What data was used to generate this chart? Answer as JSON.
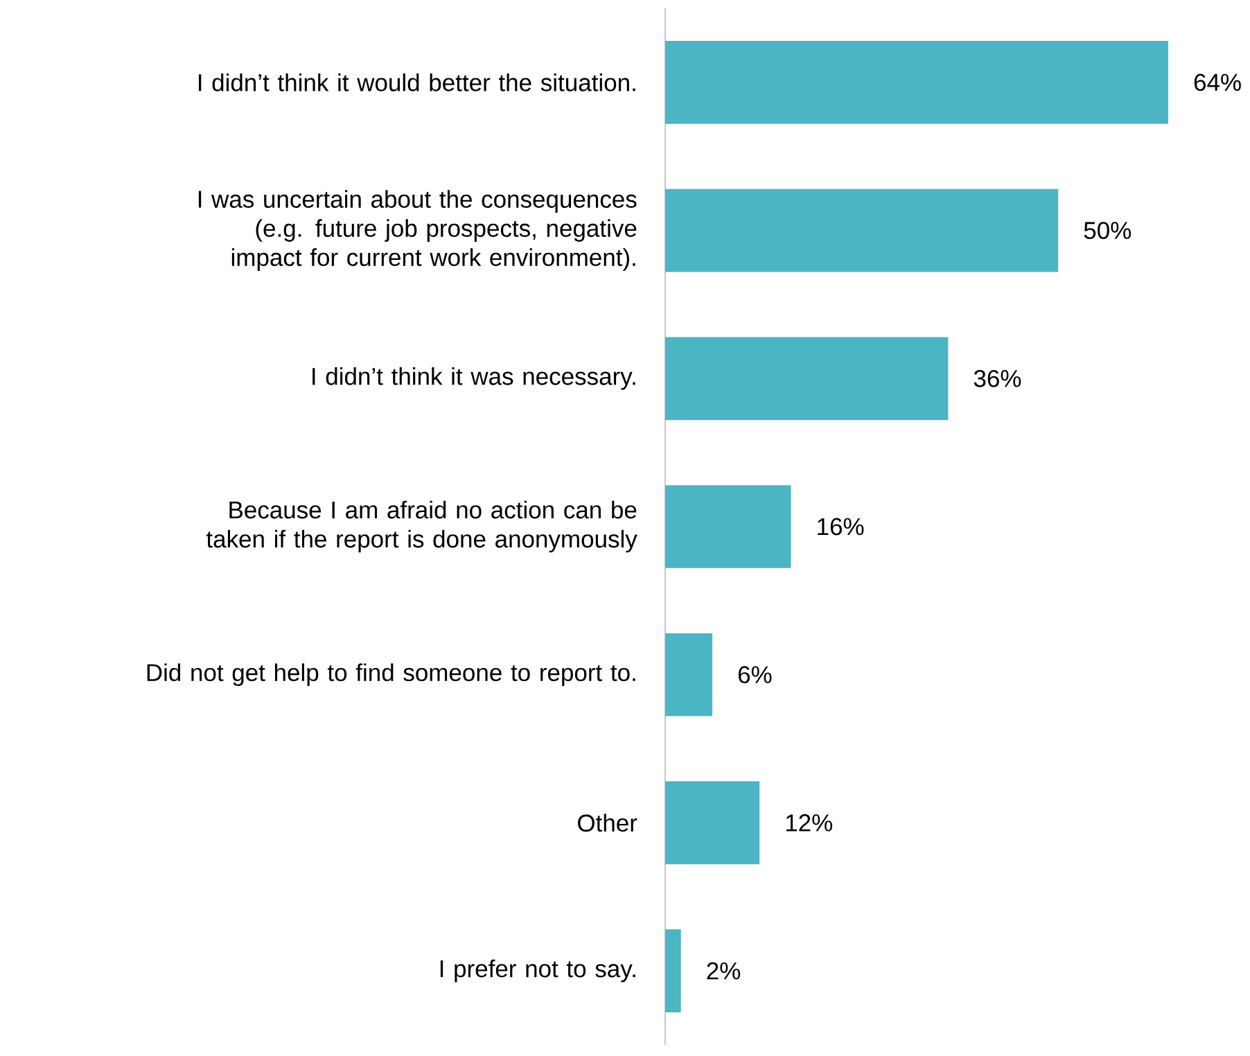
{
  "chart_data": {
    "type": "bar",
    "orientation": "horizontal",
    "categories": [
      "I didn’t think it would better the situation.",
      "I was uncertain about the consequences (e.g. future job prospects, negative impact for current work environment).",
      "I didn’t think it was necessary.",
      "Because I am afraid no action can be taken if the report is done anonymously",
      "Did not get help to find someone to report to.",
      "Other",
      "I prefer not to say."
    ],
    "values": [
      64,
      50,
      36,
      16,
      6,
      12,
      2
    ],
    "value_labels": [
      "64%",
      "50%",
      "36%",
      "16%",
      "6%",
      "12%",
      "2%"
    ],
    "color": "#4bb5c4"
  }
}
